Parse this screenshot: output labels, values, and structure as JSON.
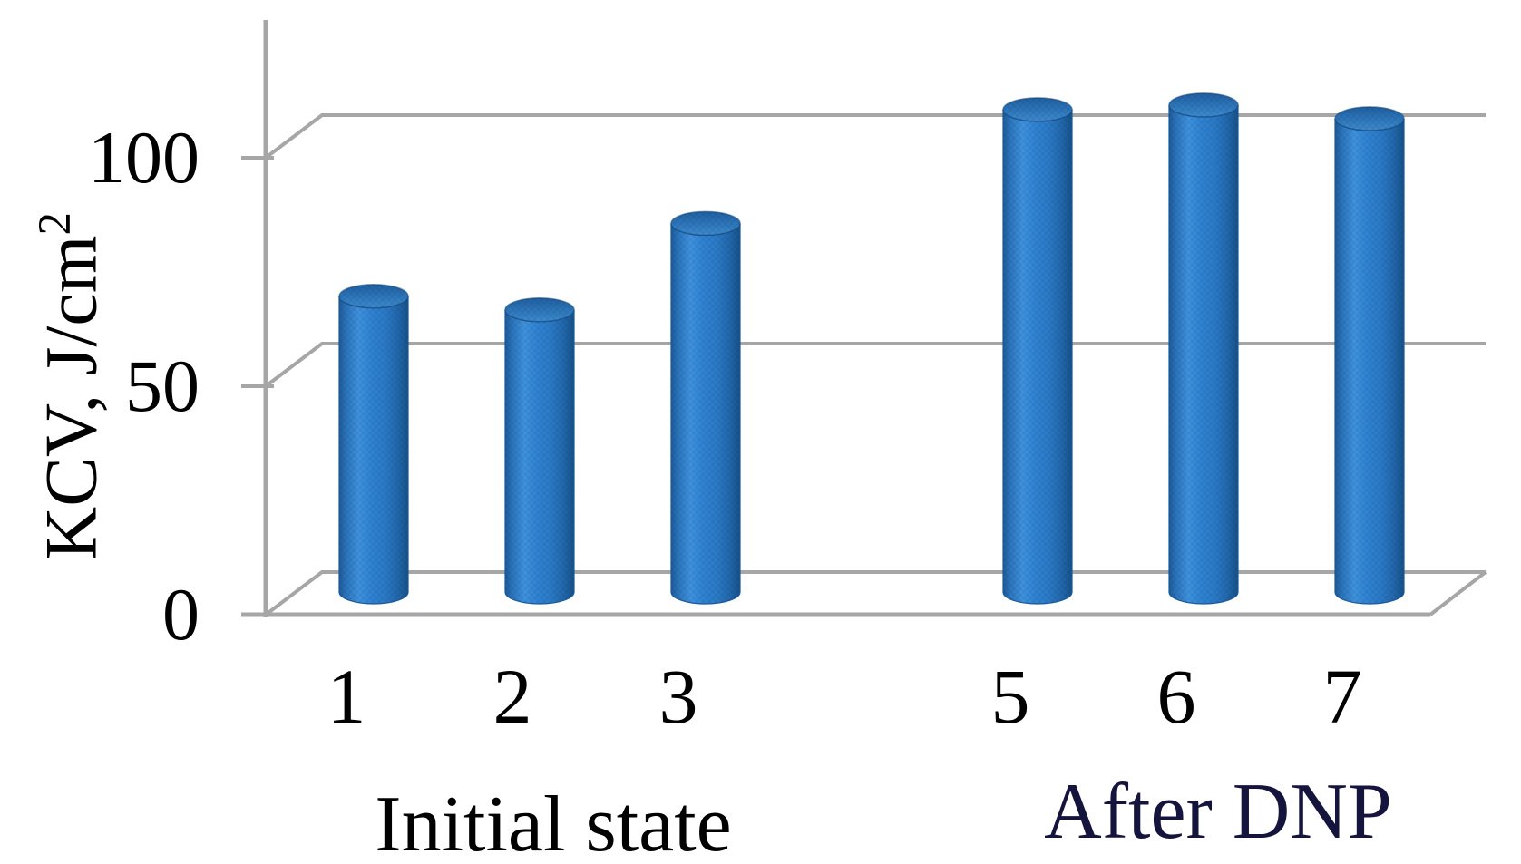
{
  "chart_data": {
    "type": "bar",
    "subtype": "3d-cylinder-columns",
    "title": "",
    "xlabel": "",
    "ylabel": "KCV, J/cm²",
    "ylim": [
      0,
      130
    ],
    "yticks": [
      0,
      50,
      100
    ],
    "grid": "horizontal gridlines at yticks, 3D back-wall perspective",
    "legend_position": "none",
    "categories": [
      "1",
      "2",
      "3",
      "5",
      "6",
      "7"
    ],
    "missing_category_slot": "4",
    "series": [
      {
        "name": "KCV",
        "values": [
          65,
          62,
          81,
          106,
          107,
          104
        ]
      }
    ],
    "groups": [
      {
        "label": "Initial state",
        "categories": [
          "1",
          "2",
          "3"
        ]
      },
      {
        "label": "After DNP",
        "categories": [
          "5",
          "6",
          "7"
        ]
      }
    ],
    "colors": {
      "bar_fill_main": "#3083d2",
      "bar_fill_highlight": "#3f92dd",
      "bar_fill_edge": "#1e5a98",
      "bar_outline": "#1b5a99",
      "cylinder_top": "#2b73b6",
      "grid": "#a6a6a6",
      "tick_text": "#000000",
      "category_text": "#000000",
      "group_initial_text": "#000000",
      "group_after_text": "#14143c",
      "background": "#ffffff"
    }
  }
}
